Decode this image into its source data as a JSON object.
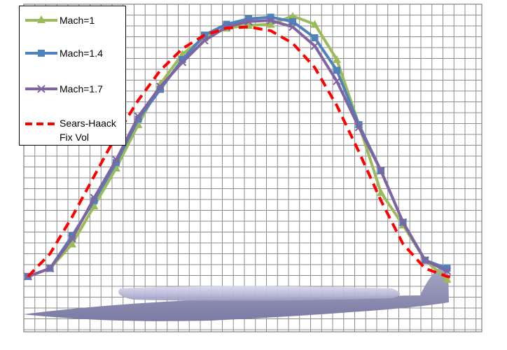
{
  "chart_data": {
    "type": "line",
    "title": "",
    "xlabel": "",
    "ylabel": "",
    "xlim": [
      0,
      20
    ],
    "ylim": [
      -1.5,
      5
    ],
    "grid": true,
    "legend_position": "top-left",
    "series": [
      {
        "name": "Mach=1",
        "color": "#9bbb59",
        "marker": "triangle",
        "style": "solid",
        "x": [
          0,
          1,
          2,
          3,
          4,
          5,
          6,
          7,
          8,
          9,
          10,
          11,
          12,
          13,
          14,
          15,
          16,
          17,
          18,
          19
        ],
        "y": [
          0,
          0.15,
          0.6,
          1.3,
          2.0,
          2.8,
          3.55,
          4.1,
          4.4,
          4.58,
          4.63,
          4.65,
          4.8,
          4.65,
          4.0,
          2.8,
          1.55,
          0.95,
          0.3,
          -0.05
        ]
      },
      {
        "name": "Mach=1.4",
        "color": "#4f81bd",
        "marker": "square",
        "style": "solid",
        "x": [
          0,
          1,
          2,
          3,
          4,
          5,
          6,
          7,
          8,
          9,
          10,
          11,
          12,
          13,
          14,
          15,
          16,
          17,
          18,
          19
        ],
        "y": [
          0,
          0.15,
          0.75,
          1.4,
          2.1,
          2.9,
          3.45,
          4.0,
          4.45,
          4.65,
          4.75,
          4.78,
          4.7,
          4.4,
          3.8,
          2.8,
          1.95,
          1.0,
          0.3,
          0.15
        ]
      },
      {
        "name": "Mach=1.7",
        "color": "#8064a2",
        "marker": "x",
        "style": "solid",
        "x": [
          0,
          1,
          2,
          3,
          4,
          5,
          6,
          7,
          8,
          9,
          10,
          11,
          12,
          13,
          14,
          15,
          16,
          17,
          18,
          19
        ],
        "y": [
          0,
          0.15,
          0.7,
          1.45,
          2.15,
          2.95,
          3.5,
          3.95,
          4.35,
          4.6,
          4.7,
          4.72,
          4.6,
          4.25,
          3.6,
          2.75,
          1.95,
          1.0,
          0.3,
          0.1
        ]
      },
      {
        "name": "Sears-Haack Fix Vol",
        "label_lines": [
          "Sears-Haack",
          "Fix Vol"
        ],
        "color": "#ff0000",
        "marker": "none",
        "style": "dashed",
        "x": [
          0,
          1,
          2,
          3,
          4,
          5,
          6,
          7,
          8,
          9,
          10,
          11,
          12,
          13,
          14,
          15,
          16,
          17,
          18,
          19,
          19.3
        ],
        "y": [
          0,
          0.42,
          1.1,
          1.85,
          2.6,
          3.25,
          3.8,
          4.2,
          4.45,
          4.58,
          4.6,
          4.53,
          4.3,
          3.85,
          3.15,
          2.3,
          1.4,
          0.6,
          0.15,
          0.0,
          -0.02
        ]
      }
    ]
  }
}
